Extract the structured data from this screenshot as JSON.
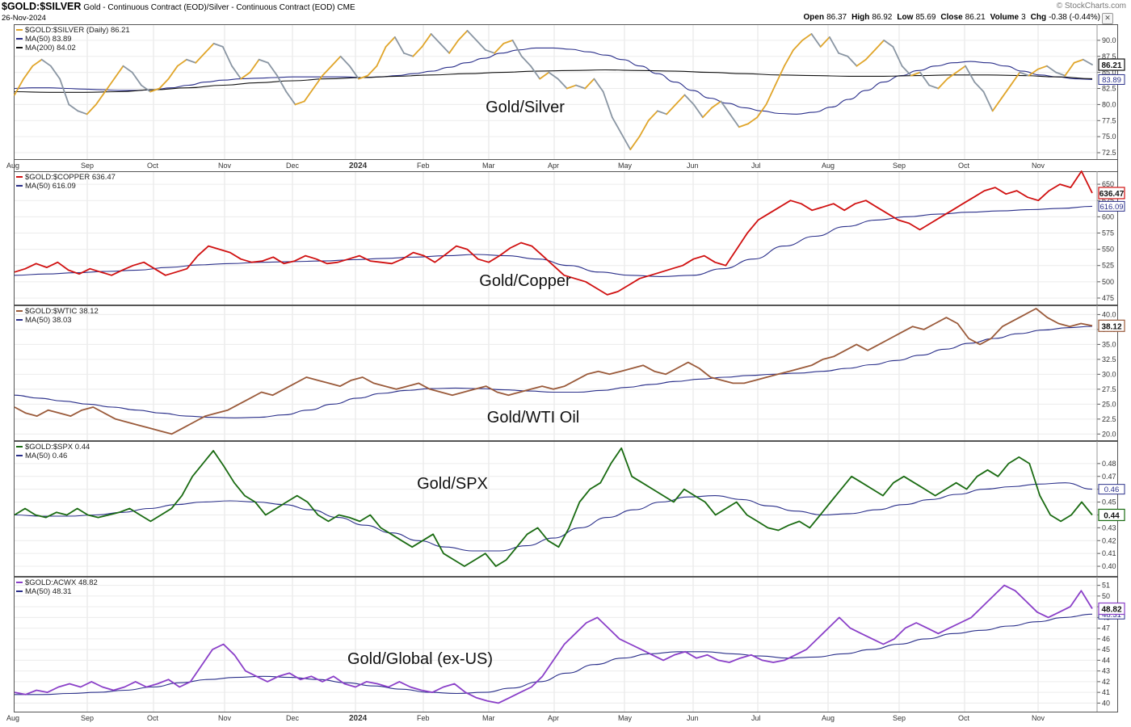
{
  "header": {
    "symbol": "$GOLD:$SILVER",
    "description": "Gold - Continuous Contract (EOD)/Silver - Continuous Contract (EOD)  CME",
    "date": "26-Nov-2024",
    "brand": "© StockCharts.com",
    "ohlc": [
      {
        "label": "Open",
        "value": "86.37"
      },
      {
        "label": "High",
        "value": "86.92"
      },
      {
        "label": "Low",
        "value": "85.69"
      },
      {
        "label": "Close",
        "value": "86.21"
      },
      {
        "label": "Volume",
        "value": "3"
      },
      {
        "label": "Chg",
        "value": "-0.38 (-0.44%)"
      }
    ],
    "close_icon": "x-close-icon"
  },
  "x_axis": {
    "months": [
      "Aug",
      "Sep",
      "Oct",
      "Nov",
      "Dec",
      "2024",
      "Feb",
      "Mar",
      "Apr",
      "May",
      "Jun",
      "Jul",
      "Aug",
      "Sep",
      "Oct",
      "Nov"
    ],
    "year_label": "2024"
  },
  "chart_data": [
    {
      "type": "line",
      "panel_label": "Gold/Silver",
      "legend": [
        "$GOLD:$SILVER (Daily) 86.21",
        "MA(50) 83.89",
        "MA(200) 84.02"
      ],
      "ylim": [
        72,
        92
      ],
      "yticks": [
        "72.5",
        "75.0",
        "77.5",
        "80.0",
        "82.5",
        "85.0",
        "87.5",
        "90.0"
      ],
      "last_value": "86.21",
      "ma_value": "83.89",
      "colors": {
        "price_up": "#e0a52a",
        "price_down": "#8a96a3",
        "ma50": "#2a2f8a",
        "ma200": "#111111"
      },
      "price": [
        81.5,
        84,
        86,
        87,
        86,
        84,
        80,
        79,
        78.5,
        80,
        82,
        84,
        86,
        85,
        83,
        82,
        82.5,
        84,
        86,
        87,
        86.5,
        88,
        89.5,
        89,
        86,
        84,
        85,
        87,
        86.5,
        84.5,
        82,
        80,
        80.5,
        82.5,
        84.5,
        86,
        87.5,
        86,
        84,
        84.5,
        86,
        89,
        90.5,
        88,
        87.5,
        89,
        91,
        89.5,
        88,
        90,
        91.5,
        90,
        88.5,
        88,
        89.5,
        90,
        87.5,
        86,
        84,
        85,
        84,
        82.5,
        83,
        82.5,
        84,
        82,
        78,
        75.5,
        73,
        75,
        77.5,
        79,
        78.5,
        80,
        81.5,
        80,
        78,
        79.5,
        80.5,
        78.5,
        76.5,
        77,
        78,
        80,
        83,
        86,
        88.5,
        90,
        91,
        89,
        90.5,
        88,
        87.5,
        86,
        87,
        88.5,
        90,
        89,
        86,
        84.5,
        85,
        83,
        82.5,
        84,
        85,
        86,
        83.5,
        82,
        79,
        81,
        83,
        85,
        84.5,
        85.5,
        86,
        85,
        84.5,
        86.5,
        87,
        86.21
      ],
      "ma50": [
        82.5,
        82.6,
        82.6,
        82.5,
        82.4,
        82.3,
        82.2,
        82.2,
        82.3,
        82.6,
        83,
        83.5,
        83.8,
        84,
        84.1,
        84.2,
        84.3,
        84.3,
        84.3,
        84.3,
        84.2,
        84.3,
        84.5,
        84.8,
        85.2,
        85.8,
        86.5,
        87.2,
        88,
        88.5,
        88.8,
        88.8,
        88.6,
        88.2,
        87.7,
        87,
        86,
        84.8,
        83.5,
        82.2,
        81,
        80.2,
        79.5,
        79,
        78.6,
        78.5,
        78.8,
        79.6,
        80.8,
        82.2,
        83.5,
        84.5,
        85.3,
        86,
        86.5,
        86.7,
        86.5,
        86,
        85.2,
        84.6,
        84.3,
        84,
        83.9
      ],
      "ma200": [
        82.0,
        81.9,
        81.9,
        82.0,
        82.3,
        82.6,
        83.0,
        83.4,
        83.7,
        84.0,
        84.2,
        84.4,
        84.6,
        84.8,
        85.0,
        85.2,
        85.3,
        85.4,
        85.3,
        85.2,
        85.0,
        84.8,
        84.6,
        84.5,
        84.4,
        84.4,
        84.5,
        84.6,
        84.6,
        84.5,
        84.3,
        84.02
      ]
    },
    {
      "type": "line",
      "panel_label": "Gold/Copper",
      "legend": [
        "$GOLD:$COPPER 636.47",
        "MA(50) 616.09"
      ],
      "ylim": [
        470,
        665
      ],
      "yticks": [
        "475",
        "500",
        "525",
        "550",
        "575",
        "600",
        "625",
        "650"
      ],
      "last_value": "636.47",
      "ma_value": "616.09",
      "colors": {
        "price": "#d01010",
        "ma50": "#2a2f8a"
      },
      "price": [
        515,
        520,
        528,
        522,
        530,
        518,
        512,
        520,
        515,
        510,
        518,
        525,
        530,
        520,
        510,
        515,
        520,
        540,
        555,
        550,
        545,
        535,
        530,
        532,
        538,
        528,
        532,
        540,
        535,
        528,
        530,
        535,
        540,
        532,
        530,
        528,
        535,
        545,
        540,
        530,
        542,
        555,
        550,
        535,
        530,
        540,
        552,
        560,
        555,
        540,
        525,
        510,
        505,
        500,
        490,
        480,
        485,
        495,
        505,
        510,
        515,
        520,
        525,
        535,
        540,
        530,
        525,
        550,
        575,
        595,
        605,
        615,
        625,
        620,
        610,
        615,
        620,
        610,
        620,
        625,
        615,
        605,
        595,
        590,
        580,
        590,
        600,
        610,
        620,
        630,
        640,
        645,
        635,
        640,
        630,
        625,
        640,
        650,
        645,
        670,
        636.47
      ],
      "ma50": [
        510,
        512,
        514,
        516,
        518,
        522,
        526,
        528,
        530,
        531,
        532,
        534,
        536,
        538,
        540,
        542,
        540,
        535,
        525,
        515,
        510,
        508,
        510,
        520,
        535,
        555,
        570,
        585,
        595,
        600,
        604,
        607,
        609,
        611,
        613,
        616.09
      ]
    },
    {
      "type": "line",
      "panel_label": "Gold/WTI Oil",
      "legend": [
        "$GOLD:$WTIC 38.12",
        "MA(50) 38.03"
      ],
      "ylim": [
        19.5,
        41
      ],
      "yticks": [
        "20.0",
        "22.5",
        "25.0",
        "27.5",
        "30.0",
        "32.5",
        "35.0",
        "37.5",
        "40.0"
      ],
      "last_value": "38.12",
      "ma_value": "38.03",
      "colors": {
        "price": "#9a5a3a",
        "ma50": "#2a2f8a"
      },
      "price": [
        24.5,
        23.5,
        23,
        24,
        23.5,
        23,
        24,
        24.5,
        23.5,
        22.5,
        22,
        21.5,
        21,
        20.5,
        20,
        21,
        22,
        23,
        23.5,
        24,
        25,
        26,
        27,
        26.5,
        27.5,
        28.5,
        29.5,
        29,
        28.5,
        28,
        29,
        29.5,
        28.5,
        28,
        27.5,
        28,
        28.5,
        27.5,
        27,
        26.5,
        27,
        27.5,
        28,
        27,
        26.5,
        27,
        27.5,
        28,
        27.5,
        28,
        29,
        30,
        30.5,
        30,
        30.5,
        31,
        31.5,
        30.5,
        30,
        31,
        32,
        31,
        29.5,
        29,
        28.5,
        28.5,
        29,
        29.5,
        30,
        30.5,
        31,
        31.5,
        32.5,
        33,
        34,
        35,
        34,
        35,
        36,
        37,
        38,
        37.5,
        38.5,
        39.5,
        38.5,
        36,
        35,
        36,
        38,
        39,
        40,
        41,
        39.5,
        38.5,
        38,
        38.5,
        38.12
      ],
      "ma50": [
        26.5,
        26,
        25.5,
        25,
        24.5,
        24,
        23.5,
        23,
        22.8,
        22.7,
        22.8,
        23.2,
        24,
        25,
        26,
        26.8,
        27.3,
        27.6,
        27.7,
        27.6,
        27.4,
        27.2,
        27,
        27,
        27.3,
        27.8,
        28.3,
        28.8,
        29.2,
        29.5,
        29.8,
        30,
        30.2,
        30.5,
        31,
        31.6,
        32.3,
        33.2,
        34.2,
        35.2,
        36,
        36.8,
        37.4,
        37.8,
        38.03
      ]
    },
    {
      "type": "line",
      "panel_label": "Gold/SPX",
      "legend": [
        "$GOLD:$SPX 0.44",
        "MA(50) 0.46"
      ],
      "ylim": [
        0.395,
        0.495
      ],
      "yticks": [
        "0.40",
        "0.41",
        "0.42",
        "0.43",
        "0.44",
        "0.45",
        "0.46",
        "0.47",
        "0.48"
      ],
      "last_value": "0.44",
      "ma_value": "0.46",
      "colors": {
        "price": "#1a6b12",
        "ma50": "#2a2f8a"
      },
      "price": [
        0.44,
        0.445,
        0.44,
        0.438,
        0.442,
        0.44,
        0.445,
        0.44,
        0.438,
        0.44,
        0.442,
        0.445,
        0.44,
        0.435,
        0.44,
        0.445,
        0.455,
        0.47,
        0.48,
        0.49,
        0.478,
        0.465,
        0.455,
        0.45,
        0.44,
        0.445,
        0.45,
        0.455,
        0.45,
        0.44,
        0.435,
        0.44,
        0.438,
        0.435,
        0.44,
        0.43,
        0.425,
        0.42,
        0.415,
        0.42,
        0.425,
        0.41,
        0.405,
        0.4,
        0.405,
        0.41,
        0.4,
        0.405,
        0.415,
        0.425,
        0.43,
        0.42,
        0.415,
        0.43,
        0.45,
        0.46,
        0.465,
        0.48,
        0.492,
        0.47,
        0.465,
        0.46,
        0.455,
        0.45,
        0.46,
        0.455,
        0.45,
        0.44,
        0.445,
        0.45,
        0.44,
        0.435,
        0.43,
        0.428,
        0.432,
        0.435,
        0.43,
        0.44,
        0.45,
        0.46,
        0.47,
        0.465,
        0.46,
        0.455,
        0.465,
        0.47,
        0.465,
        0.46,
        0.455,
        0.46,
        0.465,
        0.46,
        0.47,
        0.475,
        0.47,
        0.48,
        0.485,
        0.48,
        0.455,
        0.44,
        0.435,
        0.44,
        0.45,
        0.44
      ],
      "ma50": [
        0.44,
        0.439,
        0.439,
        0.44,
        0.442,
        0.445,
        0.448,
        0.45,
        0.451,
        0.45,
        0.448,
        0.444,
        0.438,
        0.432,
        0.426,
        0.42,
        0.415,
        0.412,
        0.412,
        0.416,
        0.422,
        0.43,
        0.438,
        0.444,
        0.45,
        0.454,
        0.455,
        0.452,
        0.447,
        0.443,
        0.44,
        0.441,
        0.444,
        0.448,
        0.452,
        0.456,
        0.46,
        0.462,
        0.464,
        0.465,
        0.46
      ],
      "ma50_dummy": []
    },
    {
      "type": "line",
      "panel_label": "Gold/Global (ex-US)",
      "legend": [
        "$GOLD:ACWX 48.82",
        "MA(50) 48.31"
      ],
      "ylim": [
        39.5,
        51.5
      ],
      "yticks": [
        "40",
        "41",
        "42",
        "43",
        "44",
        "45",
        "46",
        "47",
        "48",
        "49",
        "50",
        "51"
      ],
      "last_value": "48.82",
      "ma_value": "48.31",
      "colors": {
        "price": "#8a3fc8",
        "ma50": "#2a2f8a"
      },
      "price": [
        41,
        40.8,
        41.2,
        41,
        41.5,
        41.8,
        41.5,
        42,
        41.5,
        41.2,
        41.5,
        42,
        41.5,
        41.8,
        42.2,
        41.5,
        42,
        43.5,
        45,
        45.5,
        44.5,
        43,
        42.5,
        42,
        42.5,
        42.8,
        42.2,
        42.5,
        42,
        42.5,
        41.8,
        41.5,
        42,
        41.8,
        41.5,
        42,
        41.5,
        41.2,
        41,
        41.5,
        41.8,
        41,
        40.5,
        40.2,
        40,
        40.5,
        41,
        41.5,
        42.5,
        44,
        45.5,
        46.5,
        47.5,
        48,
        47,
        46,
        45.5,
        45,
        44.5,
        44,
        44.5,
        44.8,
        44.2,
        44.5,
        44,
        43.8,
        44.2,
        44.5,
        44,
        43.8,
        44,
        44.5,
        45,
        46,
        47,
        48,
        47,
        46.5,
        46,
        45.5,
        46,
        47,
        47.5,
        47,
        46.5,
        47,
        47.5,
        48,
        49,
        50,
        51,
        50.5,
        49.5,
        48.5,
        48,
        48.5,
        49,
        50.5,
        48.82
      ],
      "ma50": [
        40.8,
        40.8,
        40.9,
        41,
        41.2,
        41.5,
        41.9,
        42.2,
        42.4,
        42.5,
        42.4,
        42.2,
        41.9,
        41.6,
        41.3,
        41,
        40.9,
        41,
        41.4,
        42,
        42.8,
        43.6,
        44.2,
        44.6,
        44.8,
        44.8,
        44.6,
        44.4,
        44.2,
        44.3,
        44.6,
        45,
        45.5,
        46,
        46.5,
        46.8,
        47.2,
        47.6,
        48,
        48.31
      ]
    }
  ]
}
